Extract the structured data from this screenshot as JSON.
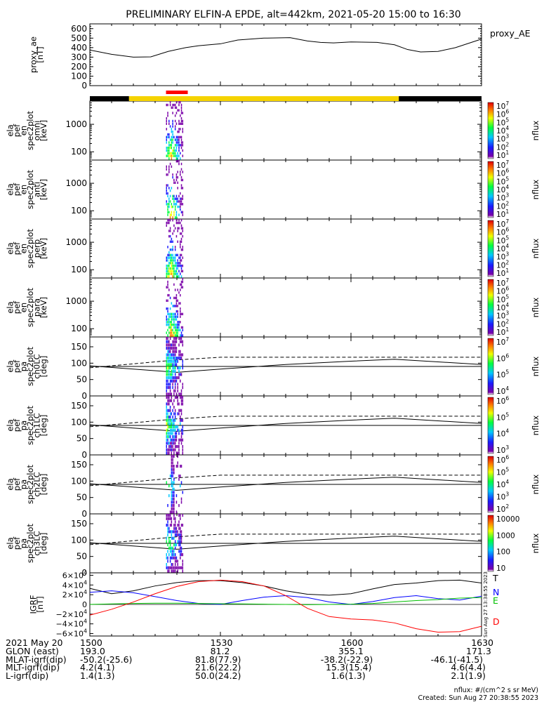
{
  "title": "PRELIMINARY ELFIN-A EPDE, alt=442km, 2021-05-20 15:00 to 16:30",
  "chart_data": [
    {
      "type": "line",
      "id": "proxy_ae",
      "ylabel_lines": [
        "proxy_ae",
        "[nT]"
      ],
      "legend": "proxy_AE",
      "ylim": [
        0,
        650
      ],
      "yticks": [
        "0",
        "100",
        "200",
        "300",
        "400",
        "500",
        "600"
      ],
      "yticks_values": [
        0,
        100,
        200,
        300,
        400,
        500,
        600
      ],
      "x_minutes": [
        0,
        5,
        10,
        14,
        18,
        22,
        25,
        30,
        34,
        40,
        46,
        50,
        53,
        56,
        60,
        66,
        70,
        73,
        76,
        80,
        84,
        90
      ],
      "values": [
        375,
        330,
        300,
        303,
        360,
        400,
        420,
        440,
        480,
        500,
        505,
        470,
        455,
        450,
        460,
        455,
        430,
        380,
        355,
        360,
        400,
        490
      ]
    },
    {
      "type": "bar",
      "id": "status_bar",
      "segments_minutes": [
        [
          0,
          9,
          "#000000"
        ],
        [
          9,
          71,
          "#f5d300"
        ],
        [
          71,
          90,
          "#000000"
        ]
      ],
      "science_zone_minutes": [
        17.5,
        22.5
      ],
      "science_zone_color": "#ff0000"
    },
    {
      "type": "heatmap",
      "id": "omni",
      "ylabel_lines": [
        "ela",
        "pef",
        "en",
        "spec2plot",
        "omni",
        "[keV]"
      ],
      "yticks": [
        "100",
        "1000"
      ],
      "cbar_label": "nflux",
      "cbar_ticks": [
        "10^7",
        "10^6",
        "10^5",
        "10^4",
        "10^3",
        "10^2",
        "10^1"
      ],
      "active_minutes": [
        17.5,
        21.5
      ]
    },
    {
      "type": "heatmap",
      "id": "anti",
      "ylabel_lines": [
        "ela",
        "pef",
        "en",
        "spec2plot",
        "anti",
        "[keV]"
      ],
      "yticks": [
        "100",
        "1000"
      ],
      "cbar_label": "nflux",
      "cbar_ticks": [
        "10^7",
        "10^6",
        "10^5",
        "10^4",
        "10^3",
        "10^2",
        "10^1"
      ],
      "active_minutes": [
        17.5,
        21.5
      ]
    },
    {
      "type": "heatmap",
      "id": "perp",
      "ylabel_lines": [
        "ela",
        "pef",
        "en",
        "spec2plot",
        "perp",
        "[keV]"
      ],
      "yticks": [
        "100",
        "1000"
      ],
      "cbar_label": "nflux",
      "cbar_ticks": [
        "10^7",
        "10^6",
        "10^5",
        "10^4",
        "10^3",
        "10^2",
        "10^1"
      ],
      "active_minutes": [
        17.5,
        21.5
      ]
    },
    {
      "type": "heatmap",
      "id": "para",
      "ylabel_lines": [
        "ela",
        "pef",
        "en",
        "spec2plot",
        "para",
        "[keV]"
      ],
      "yticks": [
        "100",
        "1000"
      ],
      "cbar_label": "nflux",
      "cbar_ticks": [
        "10^7",
        "10^6",
        "10^5",
        "10^4",
        "10^3",
        "10^2",
        "10^1"
      ],
      "active_minutes": [
        17.5,
        21.5
      ]
    },
    {
      "type": "heatmap",
      "id": "ch0LC",
      "ylabel_lines": [
        "ela",
        "pef",
        "pa",
        "spec2plot",
        "ch0LC",
        "[deg]"
      ],
      "yticks": [
        "0",
        "50",
        "100",
        "150"
      ],
      "ylim": [
        0,
        180
      ],
      "cbar_label": "nflux",
      "cbar_ticks": [
        "10^7",
        "10^6",
        "10^5",
        "10^4"
      ],
      "active_minutes": [
        17.5,
        21.5
      ]
    },
    {
      "type": "heatmap",
      "id": "ch1LC",
      "ylabel_lines": [
        "ela",
        "pef",
        "pa",
        "spec2plot",
        "ch1LC",
        "[deg]"
      ],
      "yticks": [
        "0",
        "50",
        "100",
        "150"
      ],
      "ylim": [
        0,
        180
      ],
      "cbar_label": "nflux",
      "cbar_ticks": [
        "10^6",
        "10^5",
        "10^4",
        "10^3"
      ],
      "active_minutes": [
        17.5,
        21.5
      ]
    },
    {
      "type": "heatmap",
      "id": "ch2LC",
      "ylabel_lines": [
        "ela",
        "pef",
        "pa",
        "spec2plot",
        "ch2LC",
        "[deg]"
      ],
      "yticks": [
        "0",
        "50",
        "100",
        "150"
      ],
      "ylim": [
        0,
        180
      ],
      "cbar_label": "nflux",
      "cbar_ticks": [
        "10^6",
        "10^5",
        "10^4",
        "10^3",
        "10^2"
      ],
      "active_minutes": [
        17.5,
        21.5
      ]
    },
    {
      "type": "heatmap",
      "id": "ch3LC",
      "ylabel_lines": [
        "ela",
        "pef",
        "pa",
        "spec2plot",
        "ch3LC",
        "[deg]"
      ],
      "yticks": [
        "0",
        "50",
        "100",
        "150"
      ],
      "ylim": [
        0,
        180
      ],
      "cbar_label": "nflux",
      "cbar_ticks": [
        "10000",
        "1000",
        "100",
        "10"
      ],
      "active_minutes": [
        17.5,
        21.5
      ]
    },
    {
      "type": "line",
      "id": "igrf",
      "ylabel_lines": [
        "IGRF",
        "[nT]"
      ],
      "ylim": [
        -65000,
        65000
      ],
      "yticks": [
        "6×10^4",
        "4×10^4",
        "2×10^4",
        "0",
        "−2×10^4",
        "−4×10^4",
        "−6×10^4"
      ],
      "yticks_values": [
        60000,
        40000,
        20000,
        0,
        -20000,
        -40000,
        -60000
      ],
      "x_minutes": [
        0,
        5,
        10,
        15,
        20,
        25,
        30,
        35,
        40,
        45,
        50,
        55,
        60,
        65,
        70,
        75,
        80,
        85,
        90
      ],
      "series": [
        {
          "name": "T",
          "color": "#000000",
          "values": [
            33000,
            22000,
            28000,
            38000,
            45000,
            49000,
            49000,
            45000,
            38000,
            28000,
            21000,
            19000,
            22000,
            32000,
            41000,
            44000,
            49000,
            50000,
            44000
          ]
        },
        {
          "name": "N",
          "color": "#0000ff",
          "values": [
            25000,
            28000,
            24000,
            16000,
            8000,
            2000,
            0,
            8000,
            15000,
            18000,
            14000,
            5000,
            0,
            6000,
            14000,
            18000,
            12000,
            9000,
            17000
          ]
        },
        {
          "name": "E",
          "color": "#00c000",
          "values": [
            0,
            1000,
            2000,
            2500,
            2500,
            2000,
            1500,
            1000,
            500,
            0,
            -500,
            0,
            500,
            2000,
            5000,
            8000,
            10000,
            13000,
            14000
          ]
        },
        {
          "name": "D",
          "color": "#ff0000",
          "values": [
            -22000,
            -10000,
            5000,
            22000,
            37000,
            47000,
            50000,
            47000,
            38000,
            18000,
            -8000,
            -25000,
            -30000,
            -32000,
            -38000,
            -50000,
            -57000,
            -56000,
            -45000
          ]
        }
      ],
      "side_text": "Sun Aug 27 13:38:55 2023"
    }
  ],
  "x_axis": {
    "ticks": [
      "1500",
      "1530",
      "1600",
      "1630"
    ],
    "tick_minutes": [
      0,
      30,
      60,
      90
    ]
  },
  "footer": {
    "rows": [
      {
        "label": "2021 May 20",
        "cells": [
          "1500",
          "1530",
          "1600",
          "1630"
        ]
      },
      {
        "label": "GLON (east)",
        "cells": [
          "193.0",
          "81.2",
          "355.1",
          "171.3"
        ]
      },
      {
        "label": "MLAT-igrf(dip)",
        "cells": [
          "-50.2(-25.6)",
          "81.8(77.9)",
          "-38.2(-22.9)",
          "-46.1(-41.5)"
        ]
      },
      {
        "label": "MLT-igrf(dip)",
        "cells": [
          "4.2(4.1)",
          "21.6(22.2)",
          "15.3(15.4)",
          "4.6(4.4)"
        ]
      },
      {
        "label": "L-igrf(dip)",
        "cells": [
          "1.4(1.3)",
          "50.0(24.2)",
          "1.6(1.3)",
          "2.1(1.9)"
        ]
      }
    ],
    "units_note": "nflux: #/(cm^2 s sr MeV)",
    "created": "Created: Sun Aug 27 20:38:55 2023"
  }
}
